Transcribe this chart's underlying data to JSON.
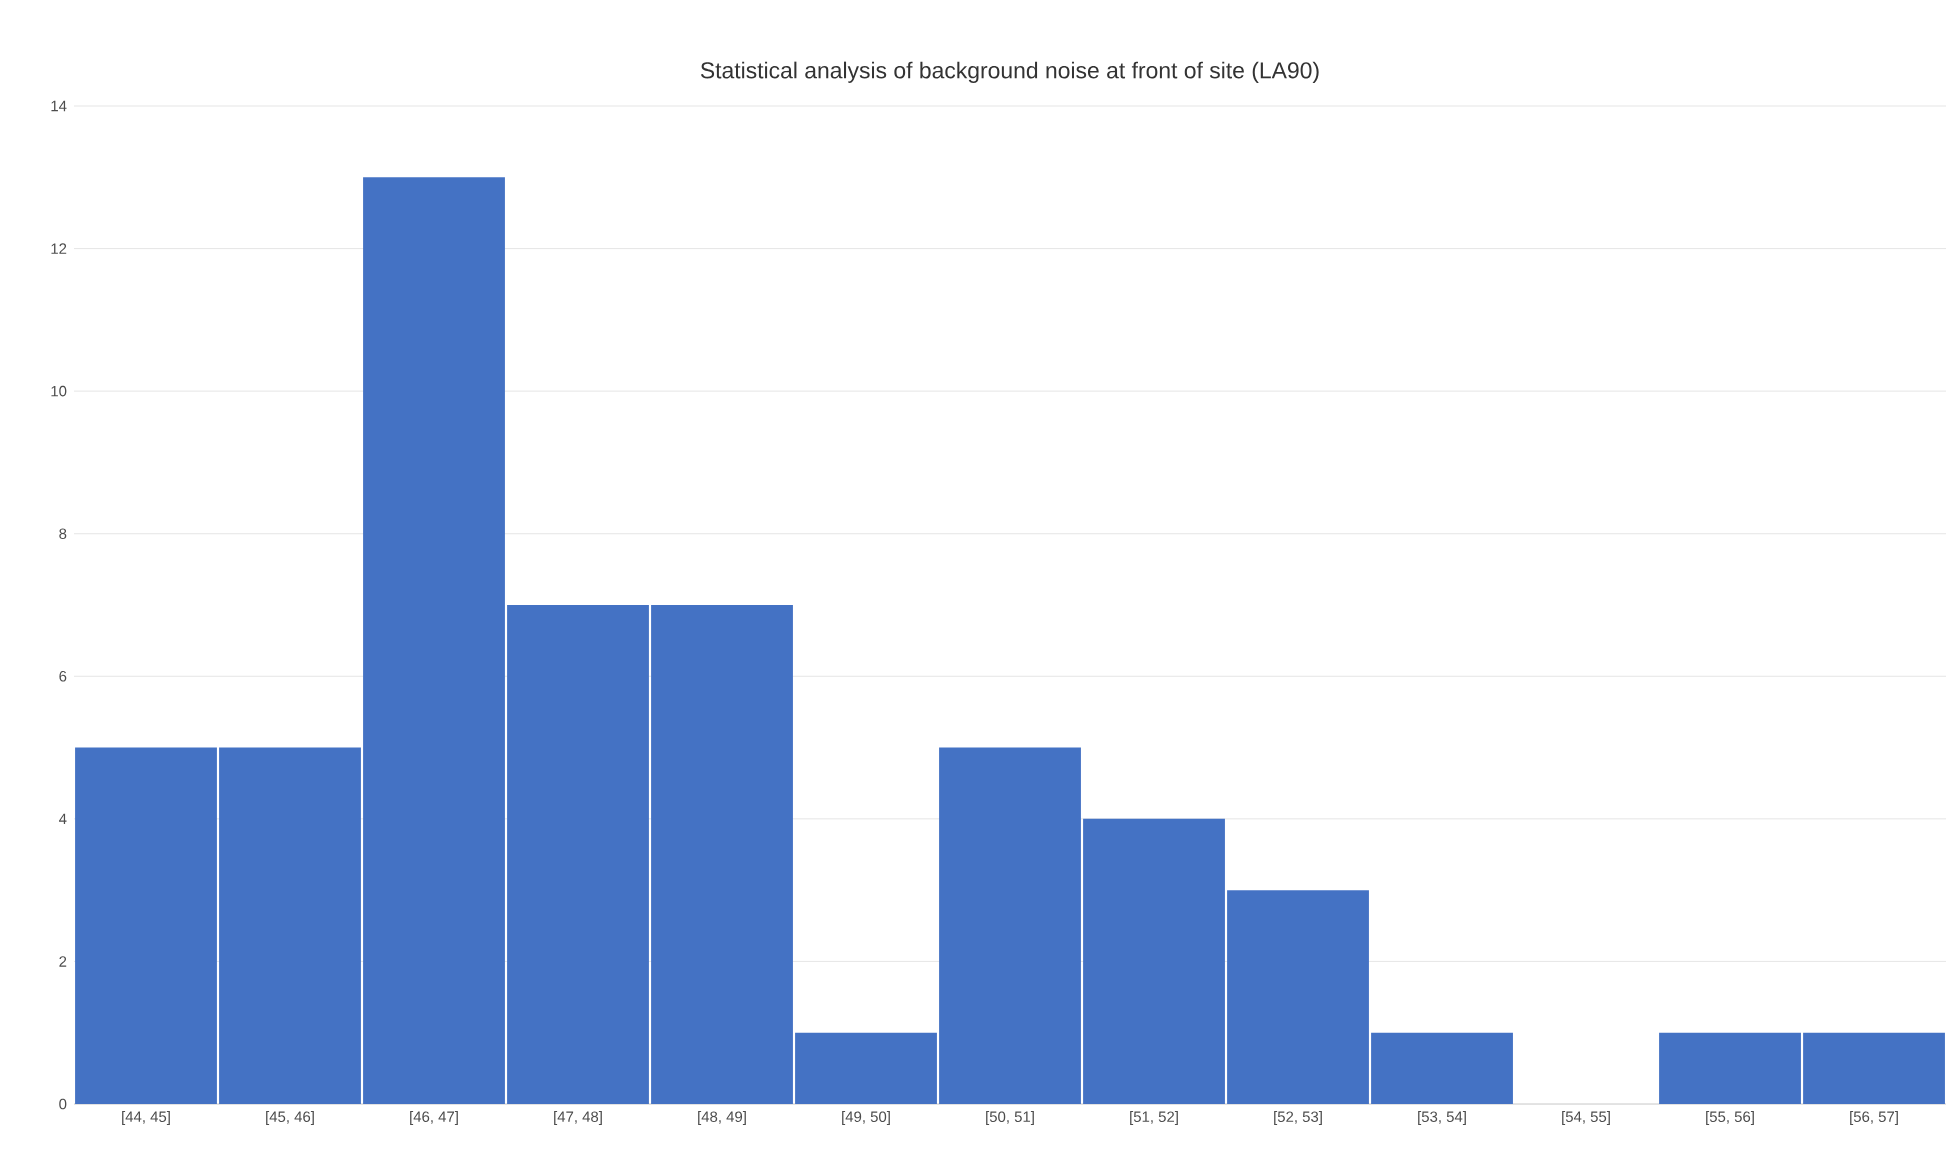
{
  "chart_data": {
    "type": "bar",
    "title": "Statistical analysis of background noise at front of site (LA90)",
    "categories": [
      "[44, 45]",
      "[45, 46]",
      "[46, 47]",
      "[47, 48]",
      "[48, 49]",
      "[49, 50]",
      "[50, 51]",
      "[51, 52]",
      "[52, 53]",
      "[53, 54]",
      "[54, 55]",
      "[55, 56]",
      "[56, 57]"
    ],
    "values": [
      5,
      5,
      13,
      7,
      7,
      1,
      5,
      4,
      3,
      1,
      0,
      1,
      1
    ],
    "color": "#4472c4",
    "ylim": [
      0,
      14
    ],
    "yticks": [
      0,
      2,
      4,
      6,
      8,
      10,
      12,
      14
    ],
    "grid": "y"
  }
}
